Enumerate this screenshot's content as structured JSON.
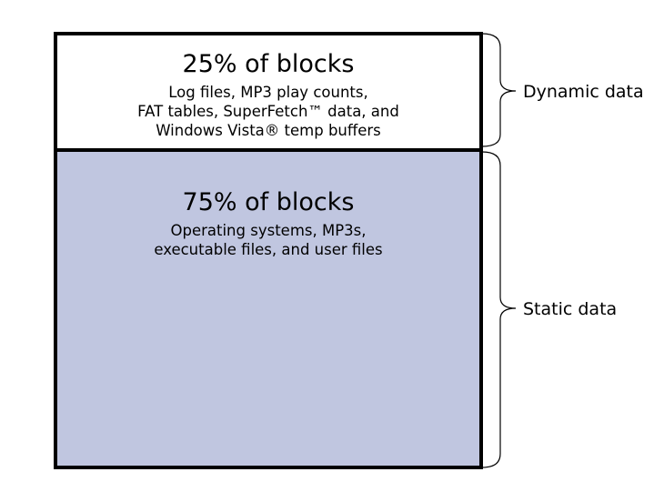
{
  "segments": {
    "dynamic": {
      "title": "25% of blocks",
      "lines": [
        "Log files, MP3 play counts,",
        "FAT tables, SuperFetch™ data, and",
        "Windows Vista® temp buffers"
      ],
      "label": "Dynamic data",
      "share_percent": 25,
      "fill_color": "#ffffff"
    },
    "static": {
      "title": "75% of blocks",
      "lines": [
        "Operating systems, MP3s,",
        "executable files, and user files"
      ],
      "label": "Static data",
      "share_percent": 75,
      "fill_color": "#c0c6e0"
    }
  }
}
